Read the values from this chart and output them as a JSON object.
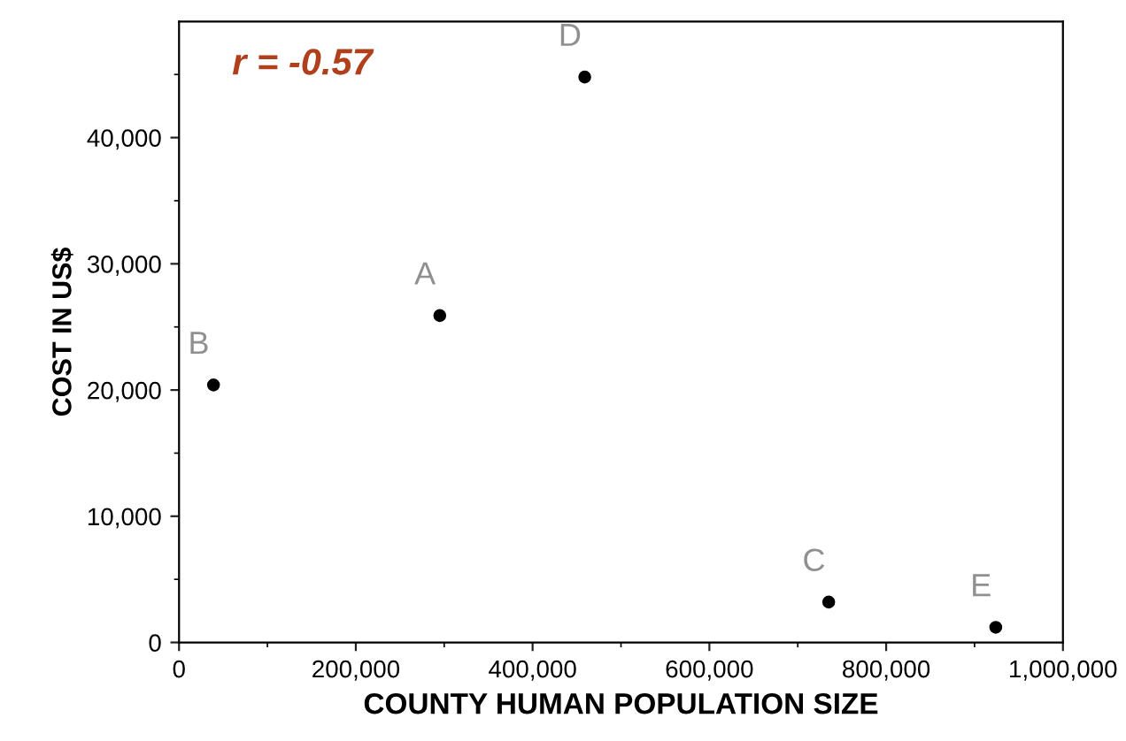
{
  "chart_data": {
    "type": "scatter",
    "xlabel": "COUNTY HUMAN POPULATION SIZE",
    "ylabel": "COST IN US$",
    "x": [
      295000,
      39000,
      735000,
      459000,
      924000
    ],
    "series": [
      {
        "color": "#000000",
        "values": [
          25900,
          20400,
          3200,
          44800,
          1200
        ]
      }
    ],
    "marker": "circle",
    "xlim": [
      0,
      1000000
    ],
    "xticks": [
      {
        "value": 0,
        "label": "0"
      },
      {
        "value": 200000,
        "label": "200,000"
      },
      {
        "value": 400000,
        "label": "400,000"
      },
      {
        "value": 600000,
        "label": "600,000"
      },
      {
        "value": 800000,
        "label": "800,000"
      },
      {
        "value": 1000000,
        "label": "1,000,000"
      }
    ],
    "ylim": [
      0,
      49200
    ],
    "yticks": [
      {
        "value": 0,
        "label": "0"
      },
      {
        "value": 10000,
        "label": "10,000"
      },
      {
        "value": 20000,
        "label": "20,000"
      },
      {
        "value": 30000,
        "label": "30,000"
      },
      {
        "value": 40000,
        "label": "40,000"
      }
    ],
    "annotations": [
      "r = -0.57",
      {
        "text": "A",
        "x": 295000,
        "y": 25900
      },
      {
        "text": "B",
        "x": 39000,
        "y": 20400
      },
      {
        "text": "C",
        "x": 735000,
        "y": 3200
      },
      {
        "text": "D",
        "x": 459000,
        "y": 44800
      },
      {
        "text": "E",
        "x": 924000,
        "y": 1200
      }
    ],
    "grid": false,
    "legend": false
  }
}
